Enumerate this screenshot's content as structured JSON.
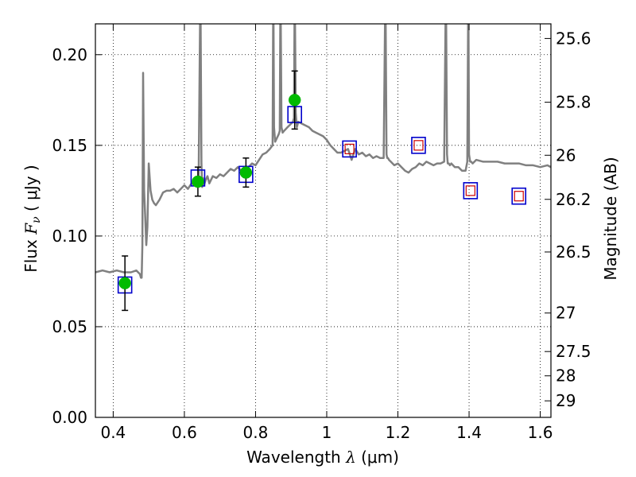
{
  "chart_data": {
    "type": "line",
    "xlabel": {
      "prefix": "Wavelength ",
      "var": "λ",
      "unit": " (μm)"
    },
    "ylabel": {
      "prefix": "Flux ",
      "var": "F",
      "sub": "ν",
      "unit": " ( μJy )"
    },
    "y2label": "Magnitude (AB)",
    "xlim": [
      0.35,
      1.63
    ],
    "ylim": [
      0.0,
      0.217
    ],
    "grid": true,
    "x_ticks": [
      0.4,
      0.6,
      0.8,
      1.0,
      1.2,
      1.4,
      1.6
    ],
    "x_tick_labels": [
      "0.4",
      "0.6",
      "0.8",
      "1",
      "1.2",
      "1.4",
      "1.6"
    ],
    "y_ticks": [
      0.0,
      0.05,
      0.1,
      0.15,
      0.2
    ],
    "y_tick_labels": [
      "0.00",
      "0.05",
      "0.10",
      "0.15",
      "0.20"
    ],
    "y2_ticks": [
      25.6,
      25.8,
      26,
      26.2,
      26.5,
      27,
      27.5,
      28,
      29
    ],
    "y2_tick_labels": [
      "25.6",
      "25.8",
      "26",
      "26.2",
      "26.5",
      "27",
      "27.5",
      "28",
      "29"
    ],
    "series": [
      {
        "kind": "model-spectrum",
        "color": "#808080",
        "x": [
          0.35,
          0.37,
          0.39,
          0.41,
          0.43,
          0.45,
          0.465,
          0.475,
          0.478,
          0.48,
          0.482,
          0.484,
          0.487,
          0.49,
          0.493,
          0.496,
          0.5,
          0.505,
          0.51,
          0.515,
          0.52,
          0.53,
          0.54,
          0.55,
          0.56,
          0.57,
          0.58,
          0.59,
          0.6,
          0.61,
          0.62,
          0.63,
          0.64,
          0.645,
          0.648,
          0.65,
          0.652,
          0.655,
          0.66,
          0.665,
          0.67,
          0.68,
          0.69,
          0.7,
          0.71,
          0.72,
          0.73,
          0.74,
          0.75,
          0.76,
          0.77,
          0.78,
          0.79,
          0.8,
          0.81,
          0.82,
          0.83,
          0.84,
          0.848,
          0.85,
          0.852,
          0.855,
          0.86,
          0.865,
          0.868,
          0.87,
          0.873,
          0.876,
          0.88,
          0.89,
          0.9,
          0.905,
          0.908,
          0.91,
          0.913,
          0.916,
          0.92,
          0.93,
          0.94,
          0.95,
          0.96,
          0.97,
          0.98,
          0.99,
          1.0,
          1.01,
          1.02,
          1.03,
          1.04,
          1.05,
          1.06,
          1.07,
          1.08,
          1.09,
          1.1,
          1.11,
          1.12,
          1.13,
          1.14,
          1.15,
          1.16,
          1.165,
          1.168,
          1.17,
          1.172,
          1.175,
          1.18,
          1.19,
          1.2,
          1.21,
          1.22,
          1.23,
          1.24,
          1.25,
          1.26,
          1.27,
          1.28,
          1.29,
          1.3,
          1.31,
          1.32,
          1.33,
          1.335,
          1.338,
          1.34,
          1.343,
          1.346,
          1.35,
          1.36,
          1.37,
          1.38,
          1.39,
          1.395,
          1.398,
          1.4,
          1.403,
          1.406,
          1.41,
          1.42,
          1.44,
          1.46,
          1.48,
          1.5,
          1.52,
          1.54,
          1.56,
          1.58,
          1.6,
          1.62,
          1.63
        ],
        "y": [
          0.08,
          0.081,
          0.08,
          0.081,
          0.08,
          0.08,
          0.081,
          0.079,
          0.077,
          0.077,
          0.095,
          0.19,
          0.125,
          0.11,
          0.095,
          0.105,
          0.14,
          0.125,
          0.12,
          0.118,
          0.117,
          0.12,
          0.124,
          0.125,
          0.125,
          0.126,
          0.124,
          0.126,
          0.128,
          0.126,
          0.129,
          0.128,
          0.13,
          0.24,
          0.14,
          0.127,
          0.132,
          0.128,
          0.131,
          0.133,
          0.129,
          0.133,
          0.132,
          0.134,
          0.133,
          0.135,
          0.137,
          0.136,
          0.138,
          0.136,
          0.137,
          0.138,
          0.14,
          0.139,
          0.142,
          0.145,
          0.146,
          0.148,
          0.15,
          0.24,
          0.16,
          0.152,
          0.154,
          0.156,
          0.158,
          0.24,
          0.16,
          0.157,
          0.158,
          0.16,
          0.162,
          0.163,
          0.165,
          0.24,
          0.168,
          0.16,
          0.163,
          0.162,
          0.161,
          0.16,
          0.158,
          0.157,
          0.156,
          0.155,
          0.153,
          0.15,
          0.148,
          0.146,
          0.146,
          0.147,
          0.148,
          0.142,
          0.148,
          0.145,
          0.146,
          0.144,
          0.145,
          0.143,
          0.144,
          0.143,
          0.143,
          0.24,
          0.145,
          0.143,
          0.143,
          0.142,
          0.141,
          0.139,
          0.14,
          0.138,
          0.136,
          0.135,
          0.137,
          0.138,
          0.14,
          0.139,
          0.141,
          0.14,
          0.139,
          0.14,
          0.14,
          0.141,
          0.24,
          0.145,
          0.14,
          0.14,
          0.139,
          0.14,
          0.138,
          0.138,
          0.136,
          0.136,
          0.141,
          0.24,
          0.145,
          0.141,
          0.141,
          0.14,
          0.142,
          0.141,
          0.141,
          0.141,
          0.14,
          0.14,
          0.14,
          0.139,
          0.139,
          0.138,
          0.139,
          0.138
        ]
      },
      {
        "kind": "model-points",
        "colors": {
          "outer": "#0000cc",
          "inner": "#cc0000"
        },
        "points": [
          {
            "x": 0.433,
            "y": 0.073,
            "inner": false
          },
          {
            "x": 0.638,
            "y": 0.132,
            "inner": false
          },
          {
            "x": 0.773,
            "y": 0.134,
            "inner": false
          },
          {
            "x": 0.91,
            "y": 0.167,
            "inner": false
          },
          {
            "x": 1.064,
            "y": 0.148,
            "inner": true
          },
          {
            "x": 1.258,
            "y": 0.15,
            "inner": true
          },
          {
            "x": 1.404,
            "y": 0.125,
            "inner": true
          },
          {
            "x": 1.54,
            "y": 0.122,
            "inner": true
          }
        ]
      },
      {
        "kind": "observed",
        "color": "#00bb00",
        "points": [
          {
            "x": 0.433,
            "y": 0.074,
            "err": 0.015
          },
          {
            "x": 0.638,
            "y": 0.13,
            "err": 0.008
          },
          {
            "x": 0.773,
            "y": 0.135,
            "err": 0.008
          },
          {
            "x": 0.91,
            "y": 0.175,
            "err": 0.016
          }
        ]
      }
    ]
  }
}
